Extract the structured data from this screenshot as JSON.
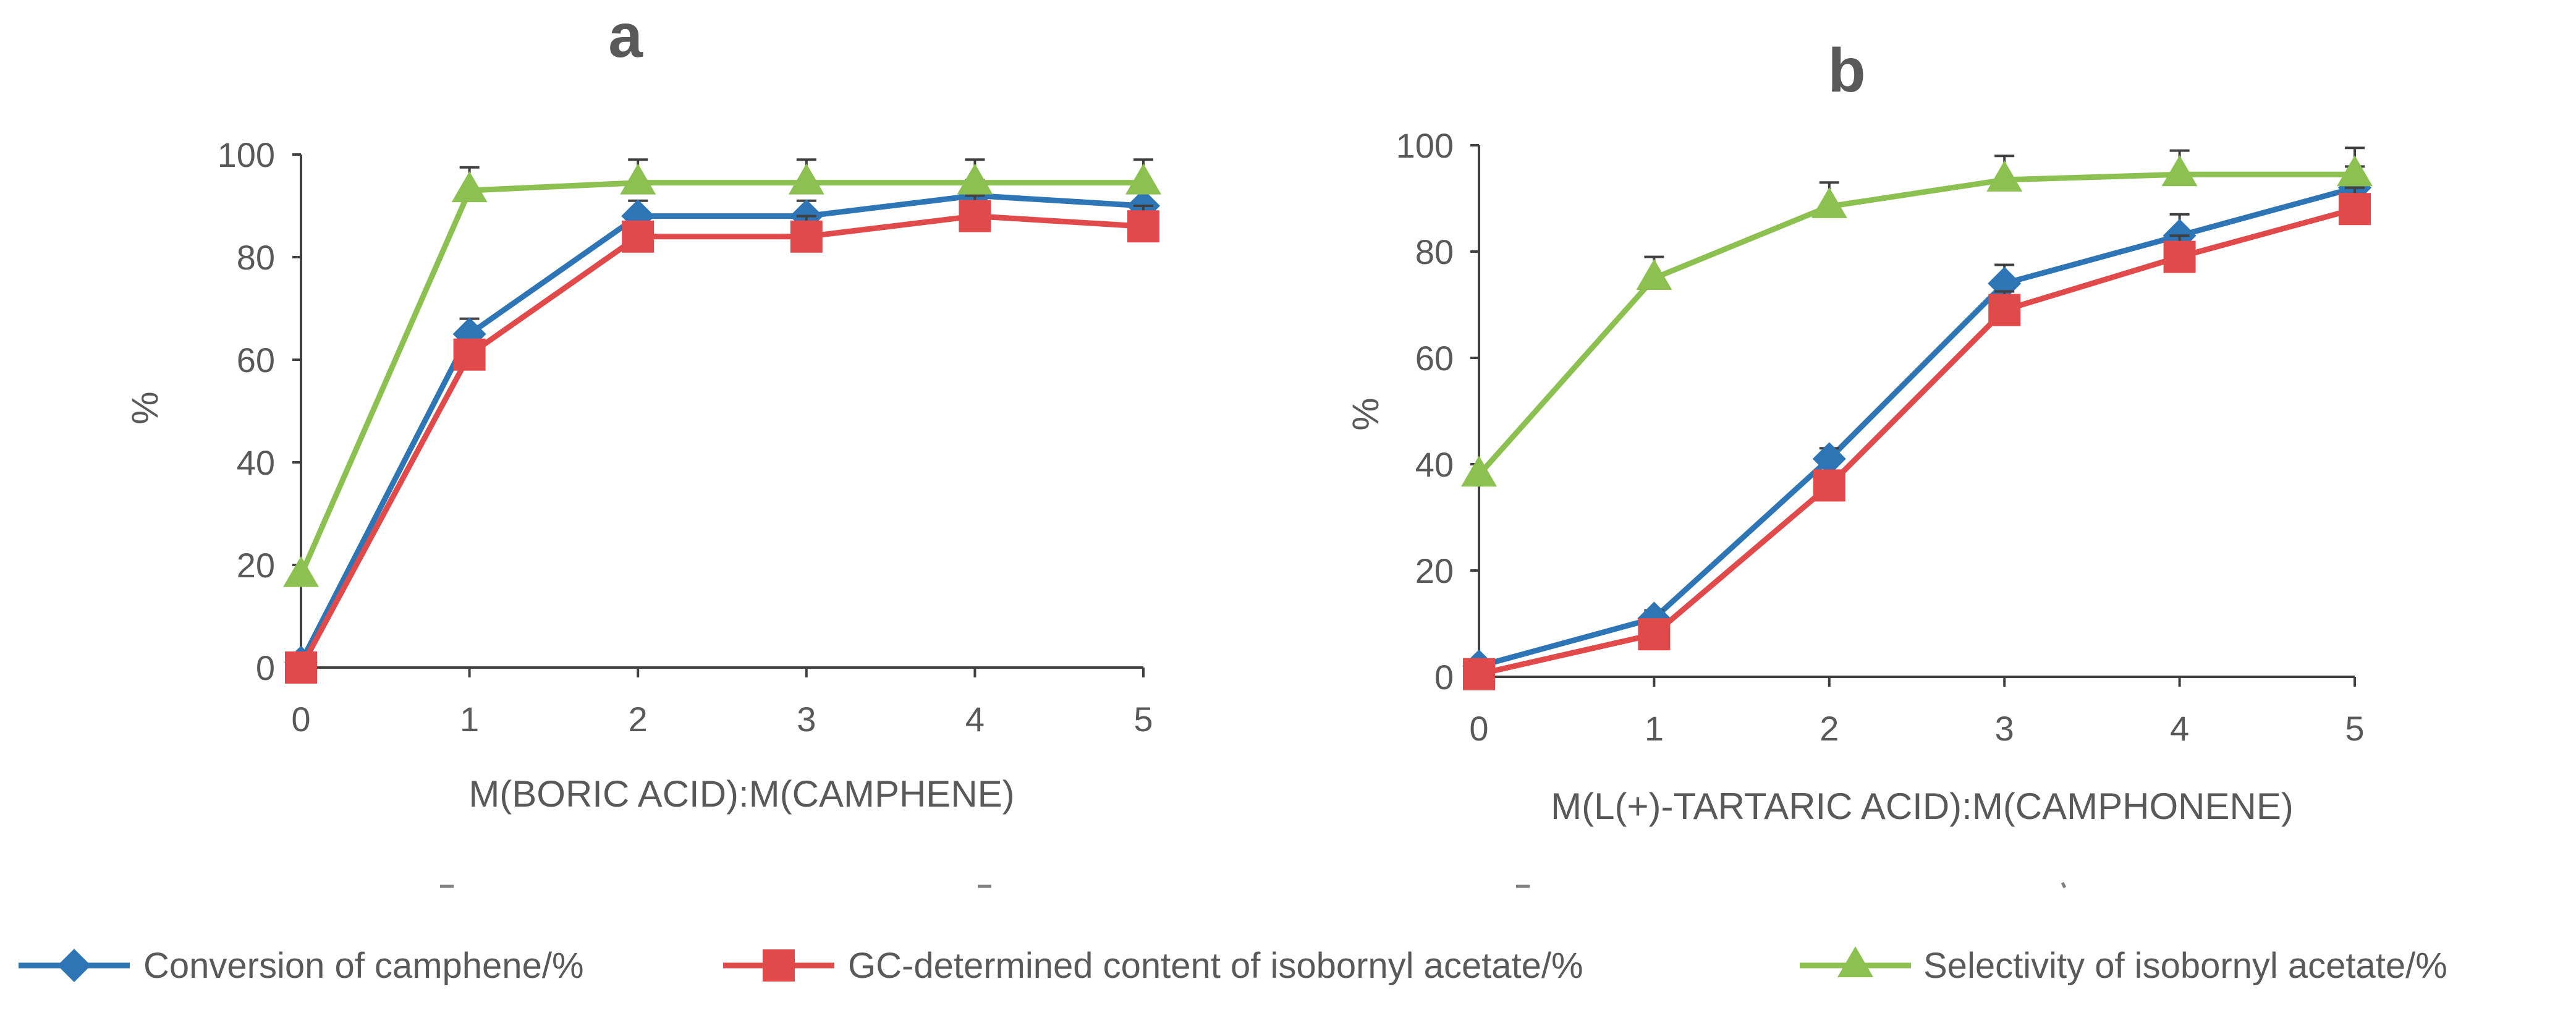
{
  "chart_data": [
    {
      "type": "line",
      "panel": "a",
      "title": "a",
      "xlabel": "M(BORIC ACID):M(CAMPHENE)",
      "ylabel": "%",
      "x": [
        0,
        1,
        2,
        3,
        4,
        5
      ],
      "xlim": [
        0,
        5
      ],
      "ylim": [
        0,
        100
      ],
      "yticks": [
        0,
        20,
        40,
        60,
        80,
        100
      ],
      "grid": false,
      "series": [
        {
          "name": "Conversion of camphene/%",
          "marker": "diamond",
          "color": "#2E75B6",
          "values": [
            1,
            65,
            88,
            88,
            92,
            90
          ],
          "errors": [
            0,
            3,
            3,
            3,
            3,
            3
          ]
        },
        {
          "name": "GC-determined content of isobornyl acetate/%",
          "marker": "square",
          "color": "#E04A4A",
          "values": [
            0,
            61,
            84,
            84,
            88,
            86
          ],
          "errors": [
            0,
            0,
            0,
            4,
            4,
            4
          ]
        },
        {
          "name": "Selectivity of isobornyl acetate/%",
          "marker": "triangle",
          "color": "#8CC152",
          "values": [
            18,
            93,
            94.5,
            94.5,
            94.5,
            94.5
          ],
          "errors": [
            0,
            4.5,
            4.5,
            4.5,
            4.5,
            4.5
          ]
        }
      ]
    },
    {
      "type": "line",
      "panel": "b",
      "title": "b",
      "xlabel": "M(L(+)-TARTARIC ACID):M(CAMPHONENE)",
      "ylabel": "%",
      "x": [
        0,
        1,
        2,
        3,
        4,
        5
      ],
      "xlim": [
        0,
        5
      ],
      "ylim": [
        0,
        100
      ],
      "yticks": [
        0,
        20,
        40,
        60,
        80,
        100
      ],
      "grid": false,
      "series": [
        {
          "name": "Conversion of camphene/%",
          "marker": "diamond",
          "color": "#2E75B6",
          "values": [
            2,
            11,
            41,
            74,
            83,
            92
          ],
          "errors": [
            0,
            1.5,
            2,
            3.5,
            4,
            4
          ]
        },
        {
          "name": "GC-determined content of isobornyl acetate/%",
          "marker": "square",
          "color": "#E04A4A",
          "values": [
            0.5,
            8,
            36,
            69,
            79,
            88
          ],
          "errors": [
            0,
            0,
            0,
            3.5,
            4,
            4
          ]
        },
        {
          "name": "Selectivity of isobornyl acetate/%",
          "marker": "triangle",
          "color": "#8CC152",
          "values": [
            38,
            75,
            88.5,
            93.5,
            94.5,
            94.5
          ],
          "errors": [
            0,
            4,
            4.5,
            4.5,
            4.5,
            5
          ]
        }
      ]
    }
  ],
  "legend": {
    "placement": "bottom",
    "items": [
      {
        "label": "Conversion of camphene/%",
        "marker": "diamond",
        "color": "#2E75B6"
      },
      {
        "label": "GC-determined content of isobornyl acetate/%",
        "marker": "square",
        "color": "#E04A4A"
      },
      {
        "label": "Selectivity of isobornyl acetate/%",
        "marker": "triangle",
        "color": "#8CC152"
      }
    ]
  },
  "colors": {
    "axis": "#404040",
    "text": "#595959",
    "errorbar": "#404040"
  }
}
